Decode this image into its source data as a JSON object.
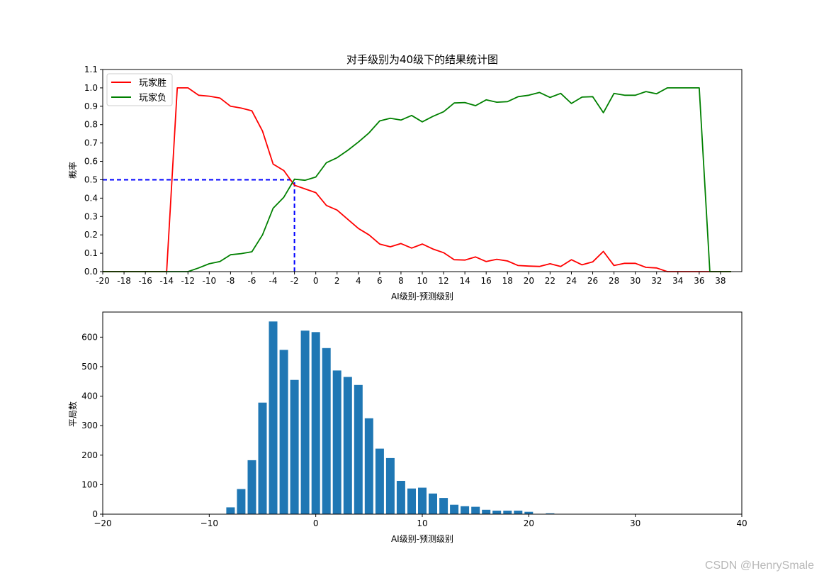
{
  "watermark": "CSDN @HenrySmale",
  "chart_data": [
    {
      "type": "line",
      "title": "对手级别为40级下的结果统计图",
      "xlabel": "AI级别-预测级别",
      "ylabel": "概率",
      "xlim": [
        -20,
        40
      ],
      "ylim": [
        0,
        1.1
      ],
      "xticks": [
        "-20",
        "-18",
        "-16",
        "-14",
        "-12",
        "-10",
        "-8",
        "-6",
        "-4",
        "-2",
        "0",
        "2",
        "4",
        "6",
        "8",
        "10",
        "12",
        "14",
        "16",
        "18",
        "20",
        "22",
        "24",
        "26",
        "28",
        "30",
        "32",
        "34",
        "36",
        "38"
      ],
      "yticks": [
        "0.0",
        "0.1",
        "0.2",
        "0.3",
        "0.4",
        "0.5",
        "0.6",
        "0.7",
        "0.8",
        "0.9",
        "1.0",
        "1.1"
      ],
      "legend_position": "top-left",
      "grid": false,
      "series": [
        {
          "name": "玩家胜",
          "color": "#ff0000",
          "x": [
            -20,
            -19,
            -18,
            -17,
            -16,
            -15,
            -14,
            -13,
            -12,
            -11,
            -10,
            -9,
            -8,
            -7,
            -6,
            -5,
            -4,
            -3,
            -2,
            -1,
            0,
            1,
            2,
            3,
            4,
            5,
            6,
            7,
            8,
            9,
            10,
            11,
            12,
            13,
            14,
            15,
            16,
            17,
            18,
            19,
            20,
            21,
            22,
            23,
            24,
            25,
            26,
            27,
            28,
            29,
            30,
            31,
            32,
            33,
            34,
            35,
            36,
            37,
            38,
            39
          ],
          "y": [
            0,
            0,
            0,
            0,
            0,
            0,
            0,
            1.0,
            1.0,
            0.96,
            0.955,
            0.945,
            0.9,
            0.89,
            0.875,
            0.765,
            0.585,
            0.55,
            0.47,
            0.45,
            0.43,
            0.36,
            0.335,
            0.285,
            0.235,
            0.2,
            0.15,
            0.135,
            0.153,
            0.128,
            0.15,
            0.123,
            0.103,
            0.065,
            0.063,
            0.08,
            0.055,
            0.067,
            0.058,
            0.033,
            0.03,
            0.028,
            0.043,
            0.028,
            0.065,
            0.037,
            0.053,
            0.11,
            0.033,
            0.045,
            0.045,
            0.023,
            0.02,
            0,
            0,
            0,
            0,
            0,
            0,
            0
          ]
        },
        {
          "name": "玩家负",
          "color": "#008000",
          "x": [
            -20,
            -19,
            -18,
            -17,
            -16,
            -15,
            -14,
            -13,
            -12,
            -11,
            -10,
            -9,
            -8,
            -7,
            -6,
            -5,
            -4,
            -3,
            -2,
            -1,
            0,
            1,
            2,
            3,
            4,
            5,
            6,
            7,
            8,
            9,
            10,
            11,
            12,
            13,
            14,
            15,
            16,
            17,
            18,
            19,
            20,
            21,
            22,
            23,
            24,
            25,
            26,
            27,
            28,
            29,
            30,
            31,
            32,
            33,
            34,
            35,
            36,
            37,
            38,
            39
          ],
          "y": [
            0,
            0,
            0,
            0,
            0,
            0,
            0,
            0,
            0,
            0.02,
            0.043,
            0.055,
            0.092,
            0.098,
            0.108,
            0.2,
            0.345,
            0.405,
            0.503,
            0.497,
            0.515,
            0.593,
            0.62,
            0.66,
            0.705,
            0.755,
            0.82,
            0.835,
            0.825,
            0.85,
            0.815,
            0.845,
            0.87,
            0.918,
            0.92,
            0.903,
            0.935,
            0.922,
            0.925,
            0.952,
            0.96,
            0.975,
            0.948,
            0.97,
            0.915,
            0.95,
            0.952,
            0.865,
            0.97,
            0.96,
            0.96,
            0.98,
            0.968,
            1.0,
            1.0,
            1.0,
            1.0,
            0,
            0,
            0
          ]
        }
      ],
      "reference_lines": [
        {
          "type": "horizontal",
          "y": 0.5,
          "x_from": -20,
          "x_to": -2,
          "color": "#0000ff",
          "style": "dashed"
        },
        {
          "type": "vertical",
          "x": -2,
          "y_from": 0,
          "y_to": 0.5,
          "color": "#0000ff",
          "style": "dashed"
        }
      ]
    },
    {
      "type": "bar",
      "title": "",
      "xlabel": "AI级别-预测级别",
      "ylabel": "平局数",
      "xlim": [
        -20,
        40
      ],
      "ylim": [
        0,
        685
      ],
      "xticks": [
        "−20",
        "−10",
        "0",
        "10",
        "20",
        "30",
        "40"
      ],
      "xtick_values": [
        -20,
        -10,
        0,
        10,
        20,
        30,
        40
      ],
      "yticks": [
        "0",
        "100",
        "200",
        "300",
        "400",
        "500",
        "600"
      ],
      "ytick_values": [
        0,
        100,
        200,
        300,
        400,
        500,
        600
      ],
      "grid": false,
      "color": "#1f77b4",
      "x": [
        -8,
        -7,
        -6,
        -5,
        -4,
        -3,
        -2,
        -1,
        0,
        1,
        2,
        3,
        4,
        5,
        6,
        7,
        8,
        9,
        10,
        11,
        12,
        13,
        14,
        15,
        16,
        17,
        18,
        19,
        20,
        21,
        22
      ],
      "values": [
        23,
        85,
        183,
        378,
        653,
        557,
        455,
        622,
        617,
        563,
        487,
        465,
        438,
        325,
        222,
        190,
        113,
        87,
        90,
        70,
        55,
        32,
        27,
        25,
        15,
        12,
        12,
        12,
        8,
        0,
        3
      ]
    }
  ]
}
